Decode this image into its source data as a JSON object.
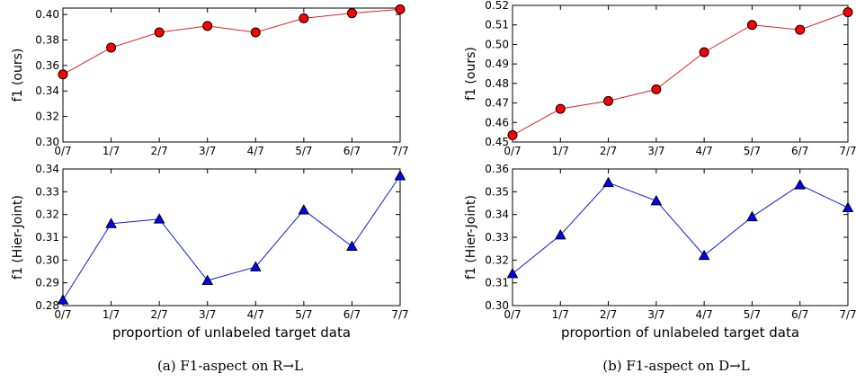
{
  "captions": {
    "left": "(a)  F1-aspect on R→L",
    "right": "(b)  F1-aspect on D→L"
  },
  "colors": {
    "ours": "#ff0000",
    "hier": "#0000ff",
    "line_ours": "#e02020",
    "line_hier": "#1515e0"
  },
  "chart_data": [
    {
      "type": "line",
      "id": "a-top",
      "categories": [
        "0/7",
        "1/7",
        "2/7",
        "3/7",
        "4/7",
        "5/7",
        "6/7",
        "7/7"
      ],
      "series": [
        {
          "values": [
            0.353,
            0.374,
            0.386,
            0.391,
            0.386,
            0.397,
            0.401,
            0.404
          ],
          "marker": "circle"
        }
      ],
      "ylabel": "f1 (ours)",
      "xlabel": "",
      "ylim": [
        0.3,
        0.405
      ],
      "yticks": [
        "0.30",
        "0.32",
        "0.34",
        "0.36",
        "0.38",
        "0.40"
      ],
      "grid": false
    },
    {
      "type": "line",
      "id": "a-bottom",
      "categories": [
        "0/7",
        "1/7",
        "2/7",
        "3/7",
        "4/7",
        "5/7",
        "6/7",
        "7/7"
      ],
      "series": [
        {
          "values": [
            0.2825,
            0.316,
            0.318,
            0.291,
            0.297,
            0.322,
            0.306,
            0.337
          ],
          "marker": "triangle"
        }
      ],
      "ylabel": "f1 (Hier-Joint)",
      "xlabel": "proportion of unlabeled target data",
      "ylim": [
        0.28,
        0.34
      ],
      "yticks": [
        "0.28",
        "0.29",
        "0.30",
        "0.31",
        "0.32",
        "0.33",
        "0.34"
      ],
      "grid": false
    },
    {
      "type": "line",
      "id": "b-top",
      "categories": [
        "0/7",
        "1/7",
        "2/7",
        "3/7",
        "4/7",
        "5/7",
        "6/7",
        "7/7"
      ],
      "series": [
        {
          "values": [
            0.4535,
            0.467,
            0.471,
            0.477,
            0.496,
            0.51,
            0.5075,
            0.5165
          ],
          "marker": "circle"
        }
      ],
      "ylabel": "f1 (ours)",
      "xlabel": "",
      "ylim": [
        0.45,
        0.52
      ],
      "yticks": [
        "0.45",
        "0.46",
        "0.47",
        "0.48",
        "0.49",
        "0.50",
        "0.51",
        "0.52"
      ],
      "grid": false
    },
    {
      "type": "line",
      "id": "b-bottom",
      "categories": [
        "0/7",
        "1/7",
        "2/7",
        "3/7",
        "4/7",
        "5/7",
        "6/7",
        "7/7"
      ],
      "series": [
        {
          "values": [
            0.314,
            0.331,
            0.354,
            0.346,
            0.322,
            0.339,
            0.353,
            0.343
          ],
          "marker": "triangle"
        }
      ],
      "ylabel": "f1 (Hier-Joint)",
      "xlabel": "proportion of unlabeled target data",
      "ylim": [
        0.3,
        0.36
      ],
      "yticks": [
        "0.30",
        "0.31",
        "0.32",
        "0.33",
        "0.34",
        "0.35",
        "0.36"
      ],
      "grid": false
    }
  ]
}
